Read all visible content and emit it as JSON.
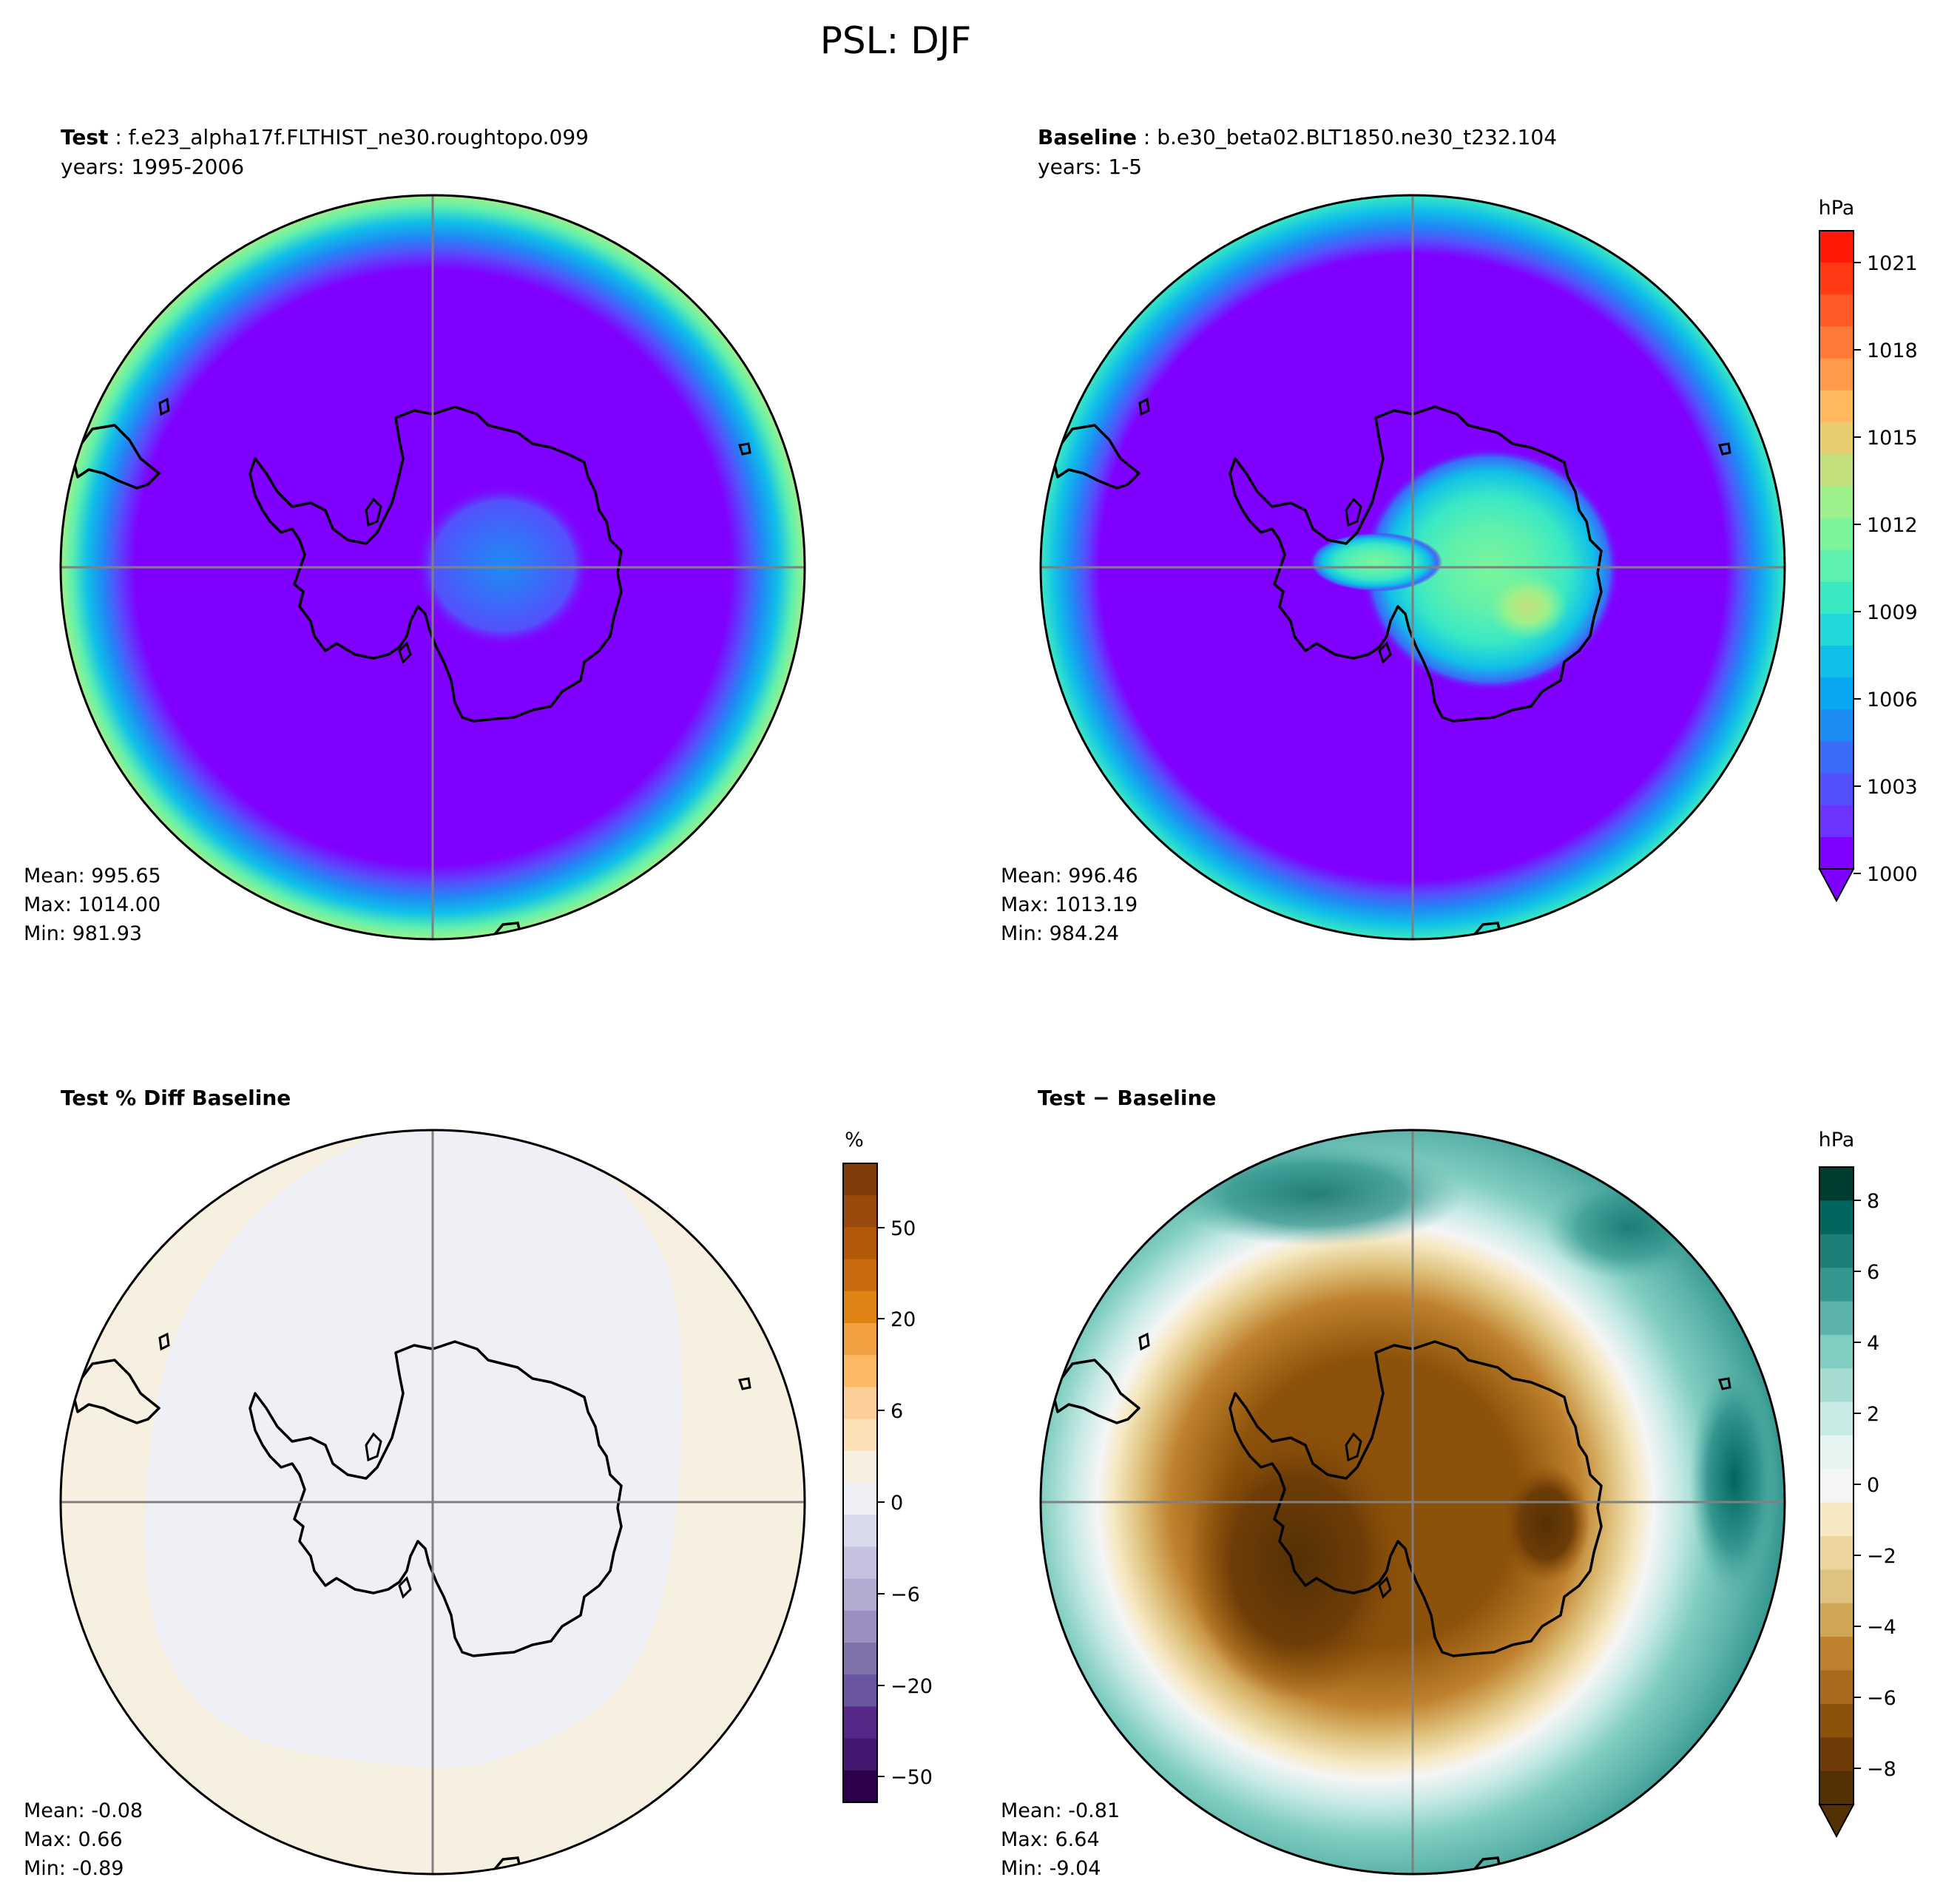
{
  "suptitle": "PSL: DJF",
  "panels": [
    {
      "id": "test",
      "title_bold": "Test",
      "title_rest": " : f.e23_alpha17f.FLTHIST_ne30.roughtopo.099",
      "subtitle": "years: 1995-2006",
      "stats": [
        "Mean: 995.65",
        "Max: 1014.00",
        "Min: 981.93"
      ]
    },
    {
      "id": "baseline",
      "title_bold": "Baseline",
      "title_rest": " : b.e30_beta02.BLT1850.ne30_t232.104",
      "subtitle": "years: 1-5",
      "stats": [
        "Mean: 996.46",
        "Max: 1013.19",
        "Min: 984.24"
      ]
    },
    {
      "id": "pct-diff",
      "title_bold": "Test % Diff Baseline",
      "title_rest": "",
      "subtitle": "",
      "stats": [
        "Mean: -0.08",
        "Max:  0.66",
        "Min: -0.89"
      ]
    },
    {
      "id": "diff",
      "title_bold": "Test − Baseline",
      "title_rest": "",
      "subtitle": "",
      "stats": [
        "Mean: -0.81",
        "Max:  6.64",
        "Min: -9.04"
      ]
    }
  ],
  "colorbars": {
    "psl": {
      "unit": "hPa",
      "ticks": [
        "1021",
        "1018",
        "1015",
        "1012",
        "1009",
        "1006",
        "1003",
        "1000"
      ],
      "colors": [
        "#ff1a08",
        "#ff3a14",
        "#ff5a26",
        "#ff7a38",
        "#ff9a4a",
        "#ffb85e",
        "#e8cc70",
        "#c4e07c",
        "#9ef08a",
        "#7cf59a",
        "#5ef0ae",
        "#3ae8c4",
        "#22d8d8",
        "#10c0e8",
        "#08a8f0",
        "#1e8cf4",
        "#3a6cf8",
        "#5450fc",
        "#6c34fe",
        "#8000ff"
      ],
      "color_names": [
        "red",
        "violet"
      ]
    },
    "pct": {
      "unit": "%",
      "ticks": [
        "50",
        "20",
        "6",
        "0",
        "−6",
        "−20",
        "−50"
      ],
      "colors": [
        "#7f3b08",
        "#9a4a0a",
        "#b35806",
        "#c96a10",
        "#e08214",
        "#f0a040",
        "#fdb863",
        "#fdcf98",
        "#fee0b6",
        "#f7efe0",
        "#eef0f6",
        "#d8daeb",
        "#c4c2de",
        "#b2abd2",
        "#9a8fc0",
        "#8073ac",
        "#6a56a0",
        "#542788",
        "#421873",
        "#2d004b"
      ],
      "color_names": [
        "brown",
        "purple"
      ]
    },
    "diff": {
      "unit": "hPa",
      "ticks": [
        "8",
        "6",
        "4",
        "2",
        "0",
        "−2",
        "−4",
        "−6",
        "−8"
      ],
      "colors": [
        "#003c30",
        "#01665e",
        "#1b7f76",
        "#35978f",
        "#5ab2a8",
        "#80cdc1",
        "#a6dbd1",
        "#c7eae5",
        "#e6f5f2",
        "#f5f5f5",
        "#f6e8c3",
        "#ecd49c",
        "#dfc27d",
        "#cfa556",
        "#bf812d",
        "#a96a1e",
        "#8c510a",
        "#6e3d07",
        "#543005"
      ],
      "color_names": [
        "dark-teal",
        "dark-brown"
      ]
    }
  },
  "chart_data": [
    {
      "type": "heatmap",
      "title": "Test : f.e23_alpha17f.FLTHIST_ne30.roughtopo.099",
      "projection": "south-polar-stereographic",
      "variable": "PSL",
      "units": "hPa",
      "colorbar_range": [
        1000,
        1022
      ],
      "extend": "min",
      "stats": {
        "mean": 995.65,
        "max": 1014.0,
        "min": 981.93
      },
      "pattern": "values below 1000 over most of the disk; 1003–1012 ring at the outer edge; 1003–1006 patch over East Antarctica"
    },
    {
      "type": "heatmap",
      "title": "Baseline : b.e30_beta02.BLT1850.ne30_t232.104",
      "projection": "south-polar-stereographic",
      "variable": "PSL",
      "units": "hPa",
      "colorbar_range": [
        1000,
        1022
      ],
      "extend": "min",
      "stats": {
        "mean": 996.46,
        "max": 1013.19,
        "min": 984.24
      },
      "pattern": "values below 1000 over most of the disk; 1003–1009 ring at the outer edge; 1006–1015 high over East Antarctica"
    },
    {
      "type": "heatmap",
      "title": "Test % Diff Baseline",
      "projection": "south-polar-stereographic",
      "units": "%",
      "colorbar_range": [
        -70,
        70
      ],
      "stats": {
        "mean": -0.08,
        "max": 0.66,
        "min": -0.89
      },
      "pattern": "0 to +3 % in an outer ring; -3 to 0 % over the interior"
    },
    {
      "type": "heatmap",
      "title": "Test − Baseline",
      "projection": "south-polar-stereographic",
      "units": "hPa",
      "colorbar_range": [
        -9,
        9
      ],
      "extend": "min",
      "stats": {
        "mean": -0.81,
        "max": 6.64,
        "min": -9.04
      },
      "pattern": "negative (-2 to -9) over Antarctica and the inner disk, most negative toward the left; positive (+2 to +7) in the outer ring"
    }
  ]
}
